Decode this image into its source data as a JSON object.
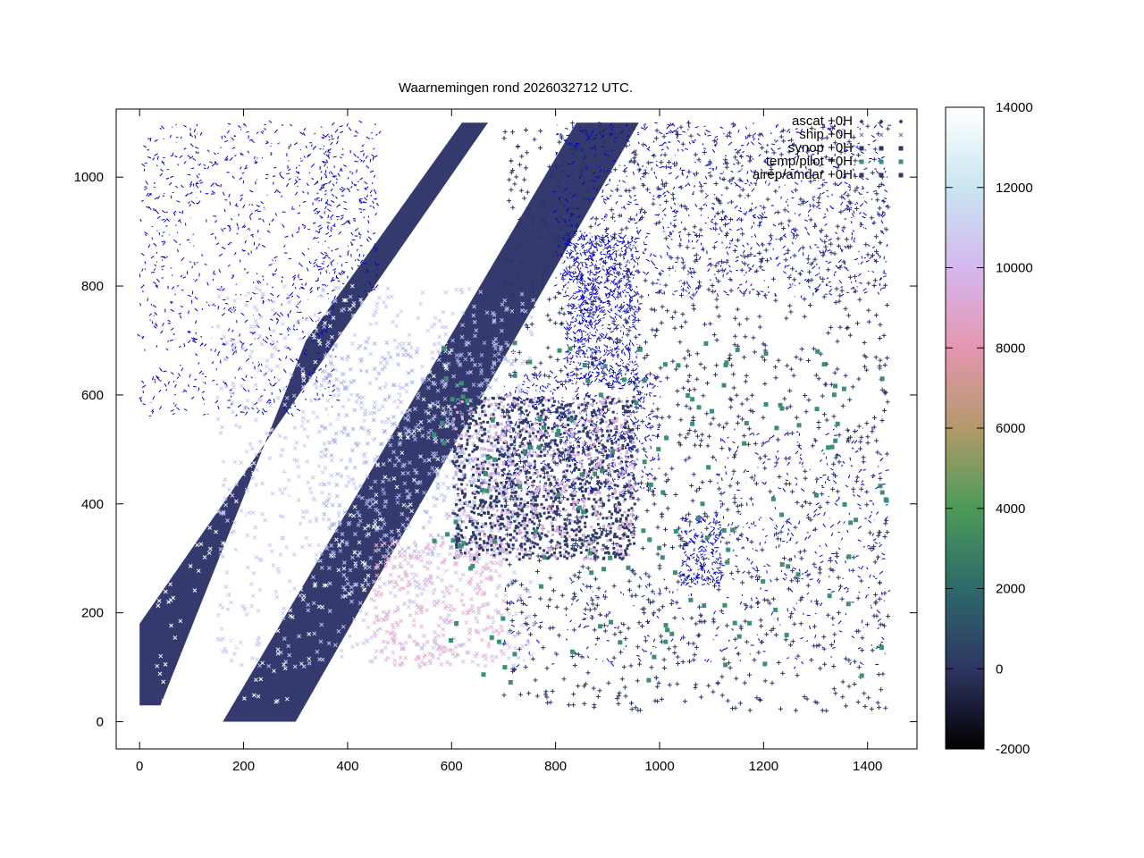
{
  "chart_data": {
    "type": "scatter",
    "title": "Waarnemingen rond 2026032712 UTC.",
    "xlabel": "",
    "ylabel": "",
    "xlim": [
      -45,
      1495
    ],
    "ylim": [
      -50,
      1125
    ],
    "xticks": [
      "0",
      "200",
      "400",
      "600",
      "800",
      "1000",
      "1200",
      "1400"
    ],
    "xtick_values": [
      0,
      200,
      400,
      600,
      800,
      1000,
      1200,
      1400
    ],
    "yticks": [
      "0",
      "200",
      "400",
      "600",
      "800",
      "1000"
    ],
    "ytick_values": [
      0,
      200,
      400,
      600,
      800,
      1000
    ],
    "grid": false,
    "legend_placement": "top-right",
    "legend": [
      {
        "name": "ascat +0H",
        "marker": "diamond",
        "color": "#353a6e"
      },
      {
        "name": "ship +0H",
        "marker": "x",
        "color": "#6f6fa8"
      },
      {
        "name": "synop +0H",
        "marker": "square",
        "color": "#2b3466"
      },
      {
        "name": "temp/pilot +0H",
        "marker": "square",
        "color": "#3b8f72"
      },
      {
        "name": "airep/amdar +0H",
        "marker": "square",
        "color": "#2d3a6b"
      }
    ],
    "colorbar": {
      "min": -2000,
      "max": 14000,
      "ticks": [
        "14000",
        "12000",
        "10000",
        "8000",
        "6000",
        "4000",
        "2000",
        "0",
        "-2000"
      ],
      "tick_values": [
        14000,
        12000,
        10000,
        8000,
        6000,
        4000,
        2000,
        0,
        -2000
      ],
      "stops": [
        {
          "value": -2000,
          "color": "#000000"
        },
        {
          "value": 0,
          "color": "#2f3563"
        },
        {
          "value": 2000,
          "color": "#2c6a6a"
        },
        {
          "value": 4000,
          "color": "#4c9a58"
        },
        {
          "value": 6000,
          "color": "#b3996a"
        },
        {
          "value": 8000,
          "color": "#e496b0"
        },
        {
          "value": 10000,
          "color": "#d5b7ee"
        },
        {
          "value": 12000,
          "color": "#c8e6f2"
        },
        {
          "value": 14000,
          "color": "#ffffff"
        }
      ]
    },
    "series": [
      {
        "name": "ascat +0H",
        "swaths": [
          {
            "polygon": [
              [
                0,
                30
              ],
              [
                0,
                180
              ],
              [
                670,
                1100
              ],
              [
                620,
                1100
              ],
              [
                320,
                700
              ],
              [
                40,
                30
              ]
            ]
          },
          {
            "polygon": [
              [
                160,
                0
              ],
              [
                300,
                0
              ],
              [
                960,
                1100
              ],
              [
                840,
                1100
              ]
            ]
          }
        ]
      },
      {
        "name": "synop +0H",
        "region": {
          "x": [
            700,
            1440
          ],
          "y": [
            20,
            1100
          ]
        }
      },
      {
        "name": "airep/amdar +0H",
        "region": {
          "x": [
            600,
            950
          ],
          "y": [
            300,
            600
          ]
        }
      },
      {
        "name": "ship +0H",
        "region": {
          "x": [
            150,
            760
          ],
          "y": [
            100,
            800
          ]
        }
      },
      {
        "name": "temp/pilot +0H",
        "region": {
          "x": [
            560,
            1440
          ],
          "y": [
            70,
            700
          ]
        }
      }
    ],
    "coastline_color": "#0000cc"
  }
}
